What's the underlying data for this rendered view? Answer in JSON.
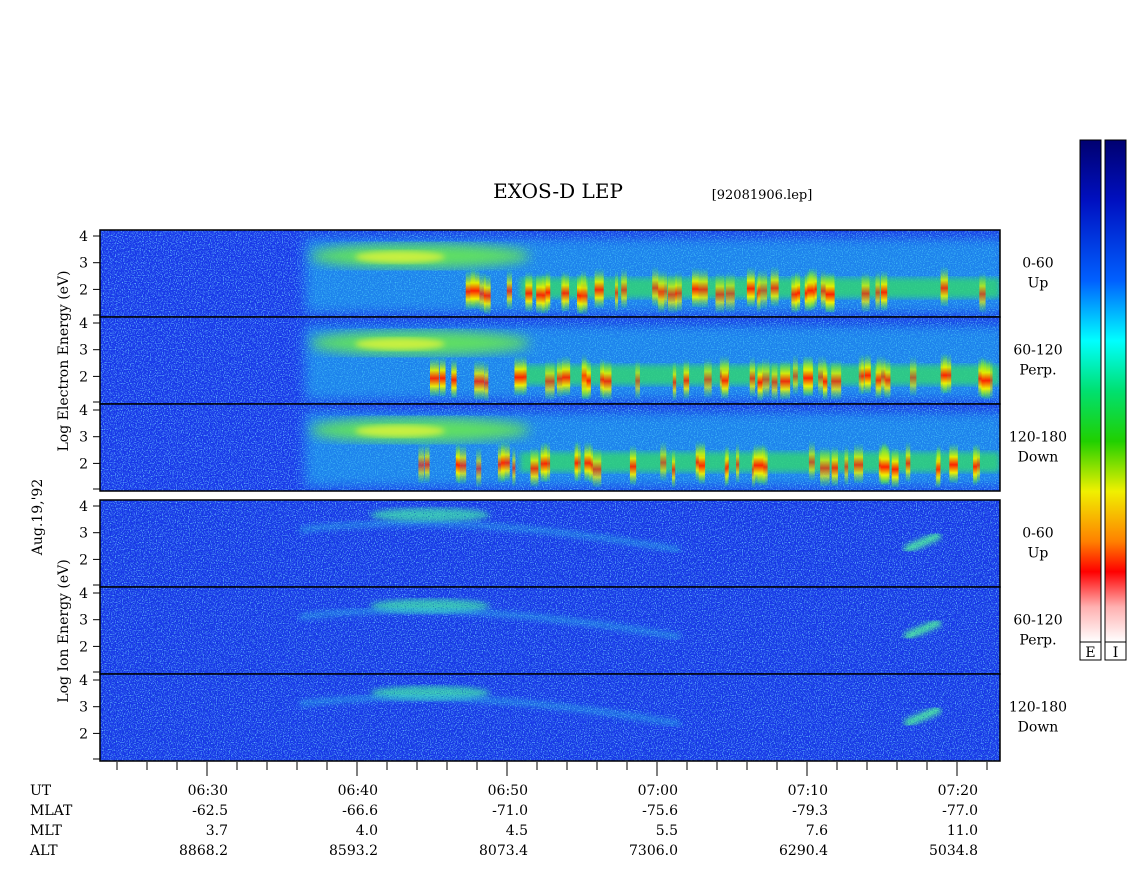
{
  "title": "EXOS-D LEP",
  "file_name": "[92081906.lep]",
  "date": "Aug.19,'92",
  "electron_axis_label": "Log  Electron  Energy (eV)",
  "ion_axis_label": "Log   Ion  Energy (eV)",
  "energy_ticks": [
    "4",
    "3",
    "2"
  ],
  "channels": [
    {
      "range": "0-60",
      "direction": "Up"
    },
    {
      "range": "60-120",
      "direction": "Perp."
    },
    {
      "range": "120-180",
      "direction": "Down"
    }
  ],
  "time_axis": {
    "rows": [
      {
        "name": "UT",
        "values": [
          "06:30",
          "06:40",
          "06:50",
          "07:00",
          "07:10",
          "07:20"
        ]
      },
      {
        "name": "MLAT",
        "values": [
          "-62.5",
          "-66.6",
          "-71.0",
          "-75.6",
          "-79.3",
          "-77.0"
        ]
      },
      {
        "name": "MLT",
        "values": [
          "3.7",
          "4.0",
          "4.5",
          "5.5",
          "7.6",
          "11.0"
        ]
      },
      {
        "name": "ALT",
        "values": [
          "8868.2",
          "8593.2",
          "8073.4",
          "7306.0",
          "6290.4",
          "5034.8"
        ]
      }
    ]
  },
  "colorbar_labels": [
    "E",
    "I"
  ]
}
